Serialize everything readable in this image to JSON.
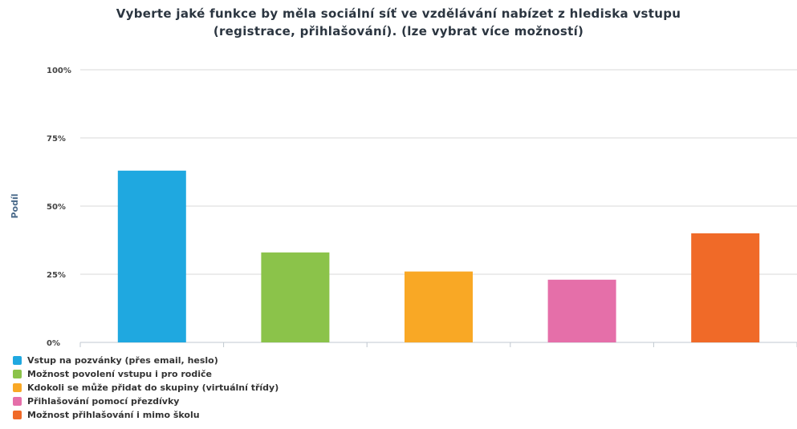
{
  "chart_data": {
    "type": "bar",
    "title_lines": [
      "Vyberte jaké funkce by měla sociální síť ve vzdělávání nabízet z hlediska vstupu",
      "(registrace, přihlašování). (lze vybrat více možností)"
    ],
    "ylabel": "Podíl",
    "ylim": [
      0,
      100
    ],
    "yticks": [
      {
        "value": 0,
        "label": "0%"
      },
      {
        "value": 25,
        "label": "25%"
      },
      {
        "value": 50,
        "label": "50%"
      },
      {
        "value": 75,
        "label": "75%"
      },
      {
        "value": 100,
        "label": "100%"
      }
    ],
    "grid": true,
    "legend_position": "bottom-left",
    "series": [
      {
        "name": "Vstup na pozvánky (přes email, heslo)",
        "value": 63,
        "color": "#1fa8e0"
      },
      {
        "name": "Možnost povolení vstupu i pro rodiče",
        "value": 33,
        "color": "#8bc34a"
      },
      {
        "name": "Kdokoli se může přidat do skupiny (virtuální třídy)",
        "value": 26,
        "color": "#f9a825"
      },
      {
        "name": "Přihlašování pomocí přezdívky",
        "value": 23,
        "color": "#e56fa9"
      },
      {
        "name": "Možnost přihlašování i mimo školu",
        "value": 40,
        "color": "#f06a28"
      }
    ]
  }
}
